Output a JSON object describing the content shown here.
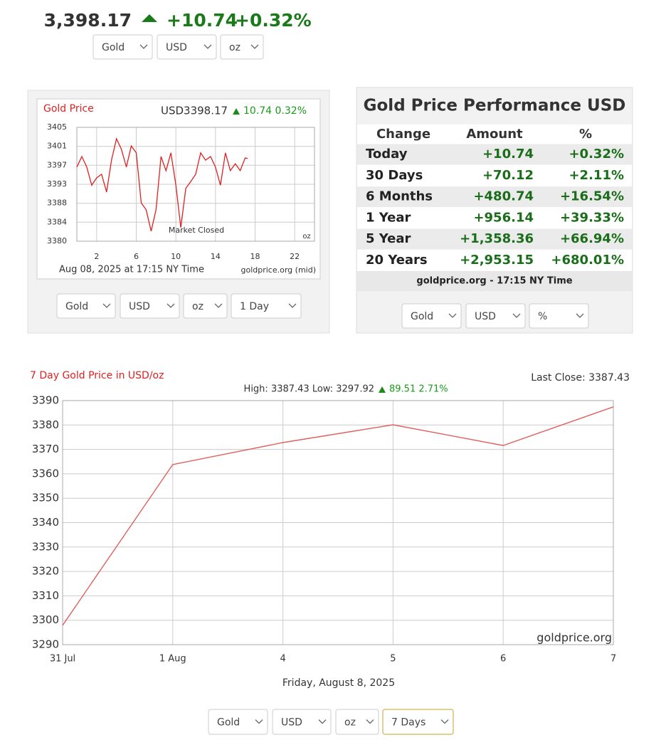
{
  "header": {
    "price": "3,398.17",
    "change": "+10.74",
    "change_percent": "+0.32%",
    "selects": [
      "Gold",
      "USD",
      "oz"
    ]
  },
  "chart_data": [
    {
      "type": "line",
      "title": "Gold Price",
      "quote": "USD3398.17",
      "change": "10.74 0.32%",
      "color": "#e02020",
      "x": [
        0,
        0.5,
        1,
        1.5,
        2,
        2.5,
        3,
        3.5,
        4,
        4.5,
        5,
        5.5,
        6,
        6.5,
        7,
        7.5,
        8,
        8.5,
        9,
        9.5,
        10,
        10.5,
        11,
        11.5,
        12,
        12.5,
        13,
        13.5,
        14,
        14.5,
        15,
        15.5,
        16,
        16.5,
        17,
        17.25
      ],
      "values": [
        3396.3,
        3398.6,
        3396.3,
        3392.3,
        3393.9,
        3394.7,
        3390.8,
        3397.8,
        3402.5,
        3400.2,
        3396.3,
        3400.9,
        3399.4,
        3388.4,
        3386.9,
        3382.2,
        3386.9,
        3398.6,
        3395.5,
        3399.4,
        3392.3,
        3383.0,
        3391.6,
        3393.1,
        3394.7,
        3399.4,
        3397.8,
        3398.6,
        3396.3,
        3392.3,
        3399.4,
        3395.5,
        3397.0,
        3395.5,
        3398.3,
        3398.17
      ],
      "xlim": [
        0,
        24
      ],
      "xticks": [
        2,
        6,
        10,
        14,
        18,
        22
      ],
      "ylim": [
        3380,
        3405
      ],
      "yticks": [
        3380,
        {
          "value": 3384.17,
          "label": "3384"
        },
        {
          "value": 3388.33,
          "label": "3388"
        },
        {
          "value": 3392.5,
          "label": "3393"
        },
        {
          "value": 3396.67,
          "label": "3397"
        },
        {
          "value": 3400.83,
          "label": "3401"
        },
        3405
      ],
      "grid": true,
      "annotations": [
        "Market Closed",
        "oz"
      ],
      "caption": "Aug 08, 2025 at 17:15 NY Time",
      "source": "goldprice.org (mid)",
      "selects": [
        "Gold",
        "USD",
        "oz",
        "1 Day"
      ]
    },
    {
      "type": "line",
      "title": "7 Day Gold Price in USD/oz",
      "last_close": "Last Close: 3387.43",
      "range": "High: 3387.43 Low: 3297.92",
      "change": "89.51 2.71%",
      "color": "#e06060",
      "categories": [
        "31 Jul",
        "1 Aug",
        "4",
        "5",
        "6",
        "7"
      ],
      "values": [
        3297.92,
        3363.8,
        3372.8,
        3380.1,
        3371.6,
        3387.43
      ],
      "ylim": [
        3290,
        3390
      ],
      "yticks": [
        3290,
        3300,
        3310,
        3320,
        3330,
        3340,
        3350,
        3360,
        3370,
        3380,
        3390
      ],
      "grid": true,
      "source": "goldprice.org",
      "xlabel": "Friday, August 8, 2025",
      "selects": [
        "Gold",
        "USD",
        "oz",
        "7 Days"
      ]
    }
  ],
  "performance": {
    "title": "Gold Price Performance USD",
    "columns": [
      "Change",
      "Amount",
      "%"
    ],
    "rows": [
      [
        "Today",
        "+10.74",
        "+0.32%"
      ],
      [
        "30 Days",
        "+70.12",
        "+2.11%"
      ],
      [
        "6 Months",
        "+480.74",
        "+16.54%"
      ],
      [
        "1 Year",
        "+956.14",
        "+39.33%"
      ],
      [
        "5 Year",
        "+1,358.36",
        "+66.94%"
      ],
      [
        "20 Years",
        "+2,953.15",
        "+680.01%"
      ]
    ],
    "footer": "goldprice.org - 17:15 NY Time",
    "selects": [
      "Gold",
      "USD",
      "%"
    ]
  }
}
